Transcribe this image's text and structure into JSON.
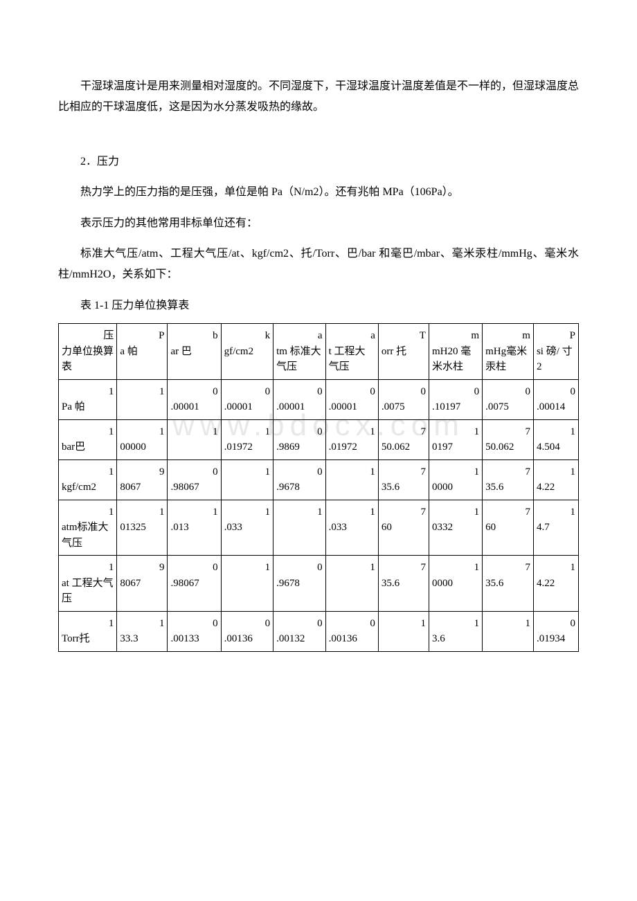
{
  "watermark": "www.bdocx.com",
  "paragraphs": {
    "p1": "干湿球温度计是用来测量相对湿度的。不同湿度下，干湿球温度计温度差值是不一样的，但湿球温度总比相应的干球温度低，这是因为水分蒸发吸热的缘故。",
    "p2": "2．压力",
    "p3": "热力学上的压力指的是压强，单位是帕 Pa（N/m2）。还有兆帕 MPa（106Pa）。",
    "p4": "表示压力的其他常用非标单位还有：",
    "p5": "标准大气压/atm、工程大气压/at、kgf/cm2、托/Torr、巴/bar 和毫巴/mbar、毫米汞柱/mmHg、毫米水柱/mmH2O，关系如下：",
    "table_title": "表 1-1 压力单位换算表"
  },
  "table": {
    "col_widths": [
      "10.4%",
      "9%",
      "9.5%",
      "9.3%",
      "9.3%",
      "9.4%",
      "9%",
      "9.5%",
      "9.1%",
      "8%"
    ],
    "header": [
      {
        "lead": "压",
        "rest": "力单位换算表"
      },
      {
        "lead": "P",
        "rest": "a 帕"
      },
      {
        "lead": "b",
        "rest": "ar 巴"
      },
      {
        "lead": "k",
        "rest": "gf/cm2"
      },
      {
        "lead": "a",
        "rest": "tm 标准大气压"
      },
      {
        "lead": "a",
        "rest": "t 工程大气压"
      },
      {
        "lead": "T",
        "rest": "orr 托"
      },
      {
        "lead": "m",
        "rest": "mH20 毫米水柱"
      },
      {
        "lead": "m",
        "rest": "mHg毫米汞柱"
      },
      {
        "lead": "P",
        "rest": "si 磅/ 寸2"
      }
    ],
    "rows": [
      [
        {
          "lead": "1",
          "rest": "Pa 帕"
        },
        {
          "lead": "1",
          "rest": ""
        },
        {
          "lead": "0",
          "rest": ".00001"
        },
        {
          "lead": "0",
          "rest": ".00001"
        },
        {
          "lead": "0",
          "rest": ".00001"
        },
        {
          "lead": "0",
          "rest": ".00001"
        },
        {
          "lead": "0",
          "rest": ".0075"
        },
        {
          "lead": "0",
          "rest": ".10197"
        },
        {
          "lead": "0",
          "rest": ".0075"
        },
        {
          "lead": "0",
          "rest": ".00014"
        }
      ],
      [
        {
          "lead": "1",
          "rest": "bar巴"
        },
        {
          "lead": "1",
          "rest": "00000"
        },
        {
          "lead": "1",
          "rest": ""
        },
        {
          "lead": "1",
          "rest": ".01972"
        },
        {
          "lead": "0",
          "rest": ".9869"
        },
        {
          "lead": "1",
          "rest": ".01972"
        },
        {
          "lead": "7",
          "rest": "50.062"
        },
        {
          "lead": "1",
          "rest": "0197"
        },
        {
          "lead": "7",
          "rest": "50.062"
        },
        {
          "lead": "1",
          "rest": "4.504"
        }
      ],
      [
        {
          "lead": "1",
          "rest": "kgf/cm2"
        },
        {
          "lead": "9",
          "rest": "8067"
        },
        {
          "lead": "0",
          "rest": ".98067"
        },
        {
          "lead": "1",
          "rest": ""
        },
        {
          "lead": "0",
          "rest": ".9678"
        },
        {
          "lead": "1",
          "rest": ""
        },
        {
          "lead": "7",
          "rest": "35.6"
        },
        {
          "lead": "1",
          "rest": "0000"
        },
        {
          "lead": "7",
          "rest": "35.6"
        },
        {
          "lead": "1",
          "rest": "4.22"
        }
      ],
      [
        {
          "lead": "1",
          "rest": "atm标准大气压"
        },
        {
          "lead": "1",
          "rest": "01325"
        },
        {
          "lead": "1",
          "rest": ".013"
        },
        {
          "lead": "1",
          "rest": ".033"
        },
        {
          "lead": "1",
          "rest": ""
        },
        {
          "lead": "1",
          "rest": ".033"
        },
        {
          "lead": "7",
          "rest": "60"
        },
        {
          "lead": "1",
          "rest": "0332"
        },
        {
          "lead": "7",
          "rest": "60"
        },
        {
          "lead": "1",
          "rest": "4.7"
        }
      ],
      [
        {
          "lead": "1",
          "rest": "at 工程大气压"
        },
        {
          "lead": "9",
          "rest": "8067"
        },
        {
          "lead": "0",
          "rest": ".98067"
        },
        {
          "lead": "1",
          "rest": ""
        },
        {
          "lead": "0",
          "rest": ".9678"
        },
        {
          "lead": "1",
          "rest": ""
        },
        {
          "lead": "7",
          "rest": "35.6"
        },
        {
          "lead": "1",
          "rest": "0000"
        },
        {
          "lead": "7",
          "rest": "35.6"
        },
        {
          "lead": "1",
          "rest": "4.22"
        }
      ],
      [
        {
          "lead": "1",
          "rest": "Torr托"
        },
        {
          "lead": "1",
          "rest": "33.3"
        },
        {
          "lead": "0",
          "rest": ".00133"
        },
        {
          "lead": "0",
          "rest": ".00136"
        },
        {
          "lead": "0",
          "rest": ".00132"
        },
        {
          "lead": "0",
          "rest": ".00136"
        },
        {
          "lead": "1",
          "rest": ""
        },
        {
          "lead": "1",
          "rest": "3.6"
        },
        {
          "lead": "1",
          "rest": ""
        },
        {
          "lead": "0",
          "rest": ".01934"
        }
      ]
    ]
  }
}
